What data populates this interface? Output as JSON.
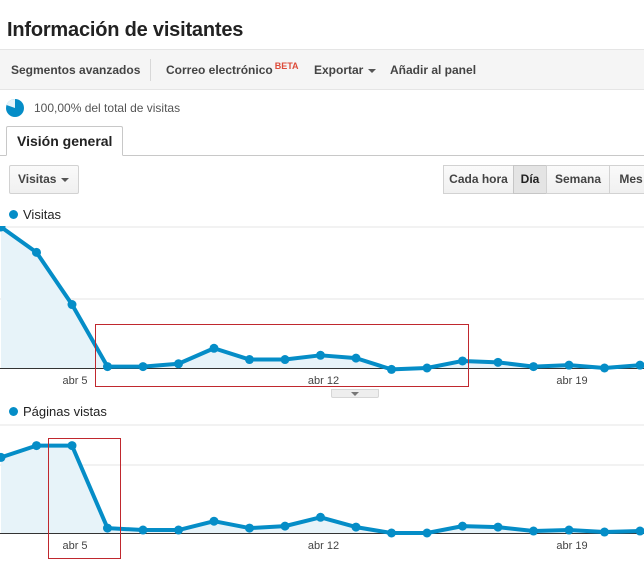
{
  "page": {
    "title": "Información de visitantes"
  },
  "toolbar": {
    "segments_label": "Segmentos avanzados",
    "email_label": "Correo electrónico",
    "email_badge": "BETA",
    "export_label": "Exportar",
    "add_dashboard_label": "Añadir al panel"
  },
  "segment": {
    "text": "100,00% del total de visitas"
  },
  "tabs": [
    {
      "label": "Visión general"
    }
  ],
  "metric_selector": {
    "value": "Visitas"
  },
  "granularity": {
    "buttons": [
      {
        "label": "Cada hora"
      },
      {
        "label": "Día",
        "active": true
      },
      {
        "label": "Semana"
      },
      {
        "label": "Mes"
      }
    ]
  },
  "colors": {
    "series": "#058dc7",
    "fill": "#e7f3f9",
    "grid": "#e6e6e6",
    "highlight": "#c0282e"
  },
  "chart_data": [
    {
      "type": "area",
      "legend": "Visitas",
      "x_tick_labels": [
        "abr 5",
        "abr 12",
        "abr 19"
      ],
      "series": [
        {
          "name": "Visitas",
          "values": [
            100,
            82,
            45,
            1,
            1,
            3,
            14,
            6,
            6,
            9,
            7,
            -1,
            0,
            5,
            4,
            1,
            2,
            0,
            2
          ]
        }
      ],
      "ylim": [
        0,
        100
      ],
      "grid": true
    },
    {
      "type": "area",
      "legend": "Páginas vistas",
      "x_tick_labels": [
        "abr 5",
        "abr 12",
        "abr 19"
      ],
      "series": [
        {
          "name": "Páginas vistas",
          "values": [
            77,
            89,
            89,
            5,
            3,
            3,
            12,
            5,
            7,
            16,
            6,
            0,
            0,
            7,
            6,
            2,
            3,
            1,
            2
          ]
        }
      ],
      "ylim": [
        0,
        110
      ],
      "grid": true
    }
  ]
}
